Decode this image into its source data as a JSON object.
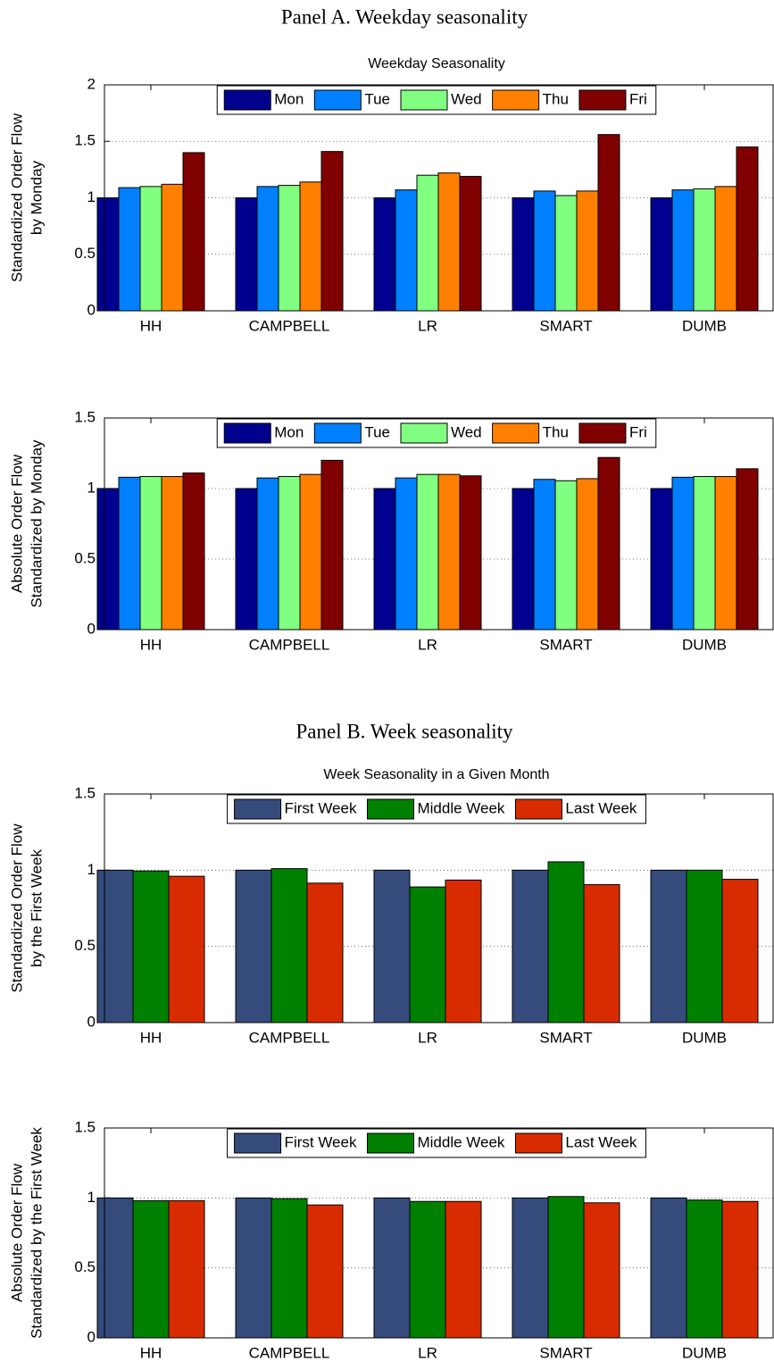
{
  "panels": [
    {
      "title": "Panel A. Weekday seasonality"
    },
    {
      "title": "Panel B. Week seasonality"
    }
  ],
  "chart_data": [
    {
      "type": "bar",
      "title": "Weekday Seasonality",
      "ylabel": [
        "Standardized Order Flow",
        "by Monday"
      ],
      "categories": [
        "HH",
        "CAMPBELL",
        "LR",
        "SMART",
        "DUMB"
      ],
      "series": [
        {
          "name": "Mon",
          "color": "#00008f",
          "values": [
            1,
            1,
            1,
            1,
            1
          ]
        },
        {
          "name": "Tue",
          "color": "#0080ff",
          "values": [
            1.09,
            1.1,
            1.07,
            1.06,
            1.07
          ]
        },
        {
          "name": "Wed",
          "color": "#80ff80",
          "values": [
            1.1,
            1.11,
            1.2,
            1.02,
            1.08
          ]
        },
        {
          "name": "Thu",
          "color": "#ff8000",
          "values": [
            1.12,
            1.14,
            1.22,
            1.06,
            1.1
          ]
        },
        {
          "name": "Fri",
          "color": "#800000",
          "values": [
            1.4,
            1.41,
            1.19,
            1.56,
            1.45
          ]
        }
      ],
      "ylim": [
        0,
        2
      ],
      "yticks": [
        0,
        0.5,
        1,
        1.5,
        2
      ],
      "grid": true,
      "legend": "top"
    },
    {
      "type": "bar",
      "ylabel": [
        "Absolute Order Flow",
        "Standardized by Monday"
      ],
      "categories": [
        "HH",
        "CAMPBELL",
        "LR",
        "SMART",
        "DUMB"
      ],
      "series": [
        {
          "name": "Mon",
          "color": "#00008f",
          "values": [
            1,
            1,
            1,
            1,
            1
          ]
        },
        {
          "name": "Tue",
          "color": "#0080ff",
          "values": [
            1.08,
            1.075,
            1.075,
            1.065,
            1.08
          ]
        },
        {
          "name": "Wed",
          "color": "#80ff80",
          "values": [
            1.085,
            1.085,
            1.1,
            1.055,
            1.085
          ]
        },
        {
          "name": "Thu",
          "color": "#ff8000",
          "values": [
            1.085,
            1.1,
            1.1,
            1.07,
            1.085
          ]
        },
        {
          "name": "Fri",
          "color": "#800000",
          "values": [
            1.11,
            1.2,
            1.09,
            1.22,
            1.14
          ]
        }
      ],
      "ylim": [
        0,
        1.5
      ],
      "yticks": [
        0,
        0.5,
        1,
        1.5
      ],
      "grid": true,
      "legend": "top"
    },
    {
      "type": "bar",
      "title": "Week Seasonality in a Given Month",
      "ylabel": [
        "Standardized Order Flow",
        "by the First Week"
      ],
      "categories": [
        "HH",
        "CAMPBELL",
        "LR",
        "SMART",
        "DUMB"
      ],
      "series": [
        {
          "name": "First Week",
          "color": "#354b7c",
          "values": [
            1,
            1,
            1,
            1,
            1
          ]
        },
        {
          "name": "Middle Week",
          "color": "#008000",
          "values": [
            0.995,
            1.01,
            0.89,
            1.055,
            1.0
          ]
        },
        {
          "name": "Last Week",
          "color": "#d92b00",
          "values": [
            0.96,
            0.915,
            0.935,
            0.905,
            0.94
          ]
        }
      ],
      "ylim": [
        0,
        1.5
      ],
      "yticks": [
        0,
        0.5,
        1,
        1.5
      ],
      "grid": true,
      "legend": "top"
    },
    {
      "type": "bar",
      "ylabel": [
        "Absolute Order Flow",
        "Standardized by the First Week"
      ],
      "categories": [
        "HH",
        "CAMPBELL",
        "LR",
        "SMART",
        "DUMB"
      ],
      "series": [
        {
          "name": "First Week",
          "color": "#354b7c",
          "values": [
            1,
            1,
            1,
            1,
            1
          ]
        },
        {
          "name": "Middle Week",
          "color": "#008000",
          "values": [
            0.98,
            0.995,
            0.975,
            1.01,
            0.985
          ]
        },
        {
          "name": "Last Week",
          "color": "#d92b00",
          "values": [
            0.98,
            0.95,
            0.975,
            0.965,
            0.975
          ]
        }
      ],
      "ylim": [
        0,
        1.5
      ],
      "yticks": [
        0,
        0.5,
        1,
        1.5
      ],
      "grid": true,
      "legend": "top"
    }
  ]
}
